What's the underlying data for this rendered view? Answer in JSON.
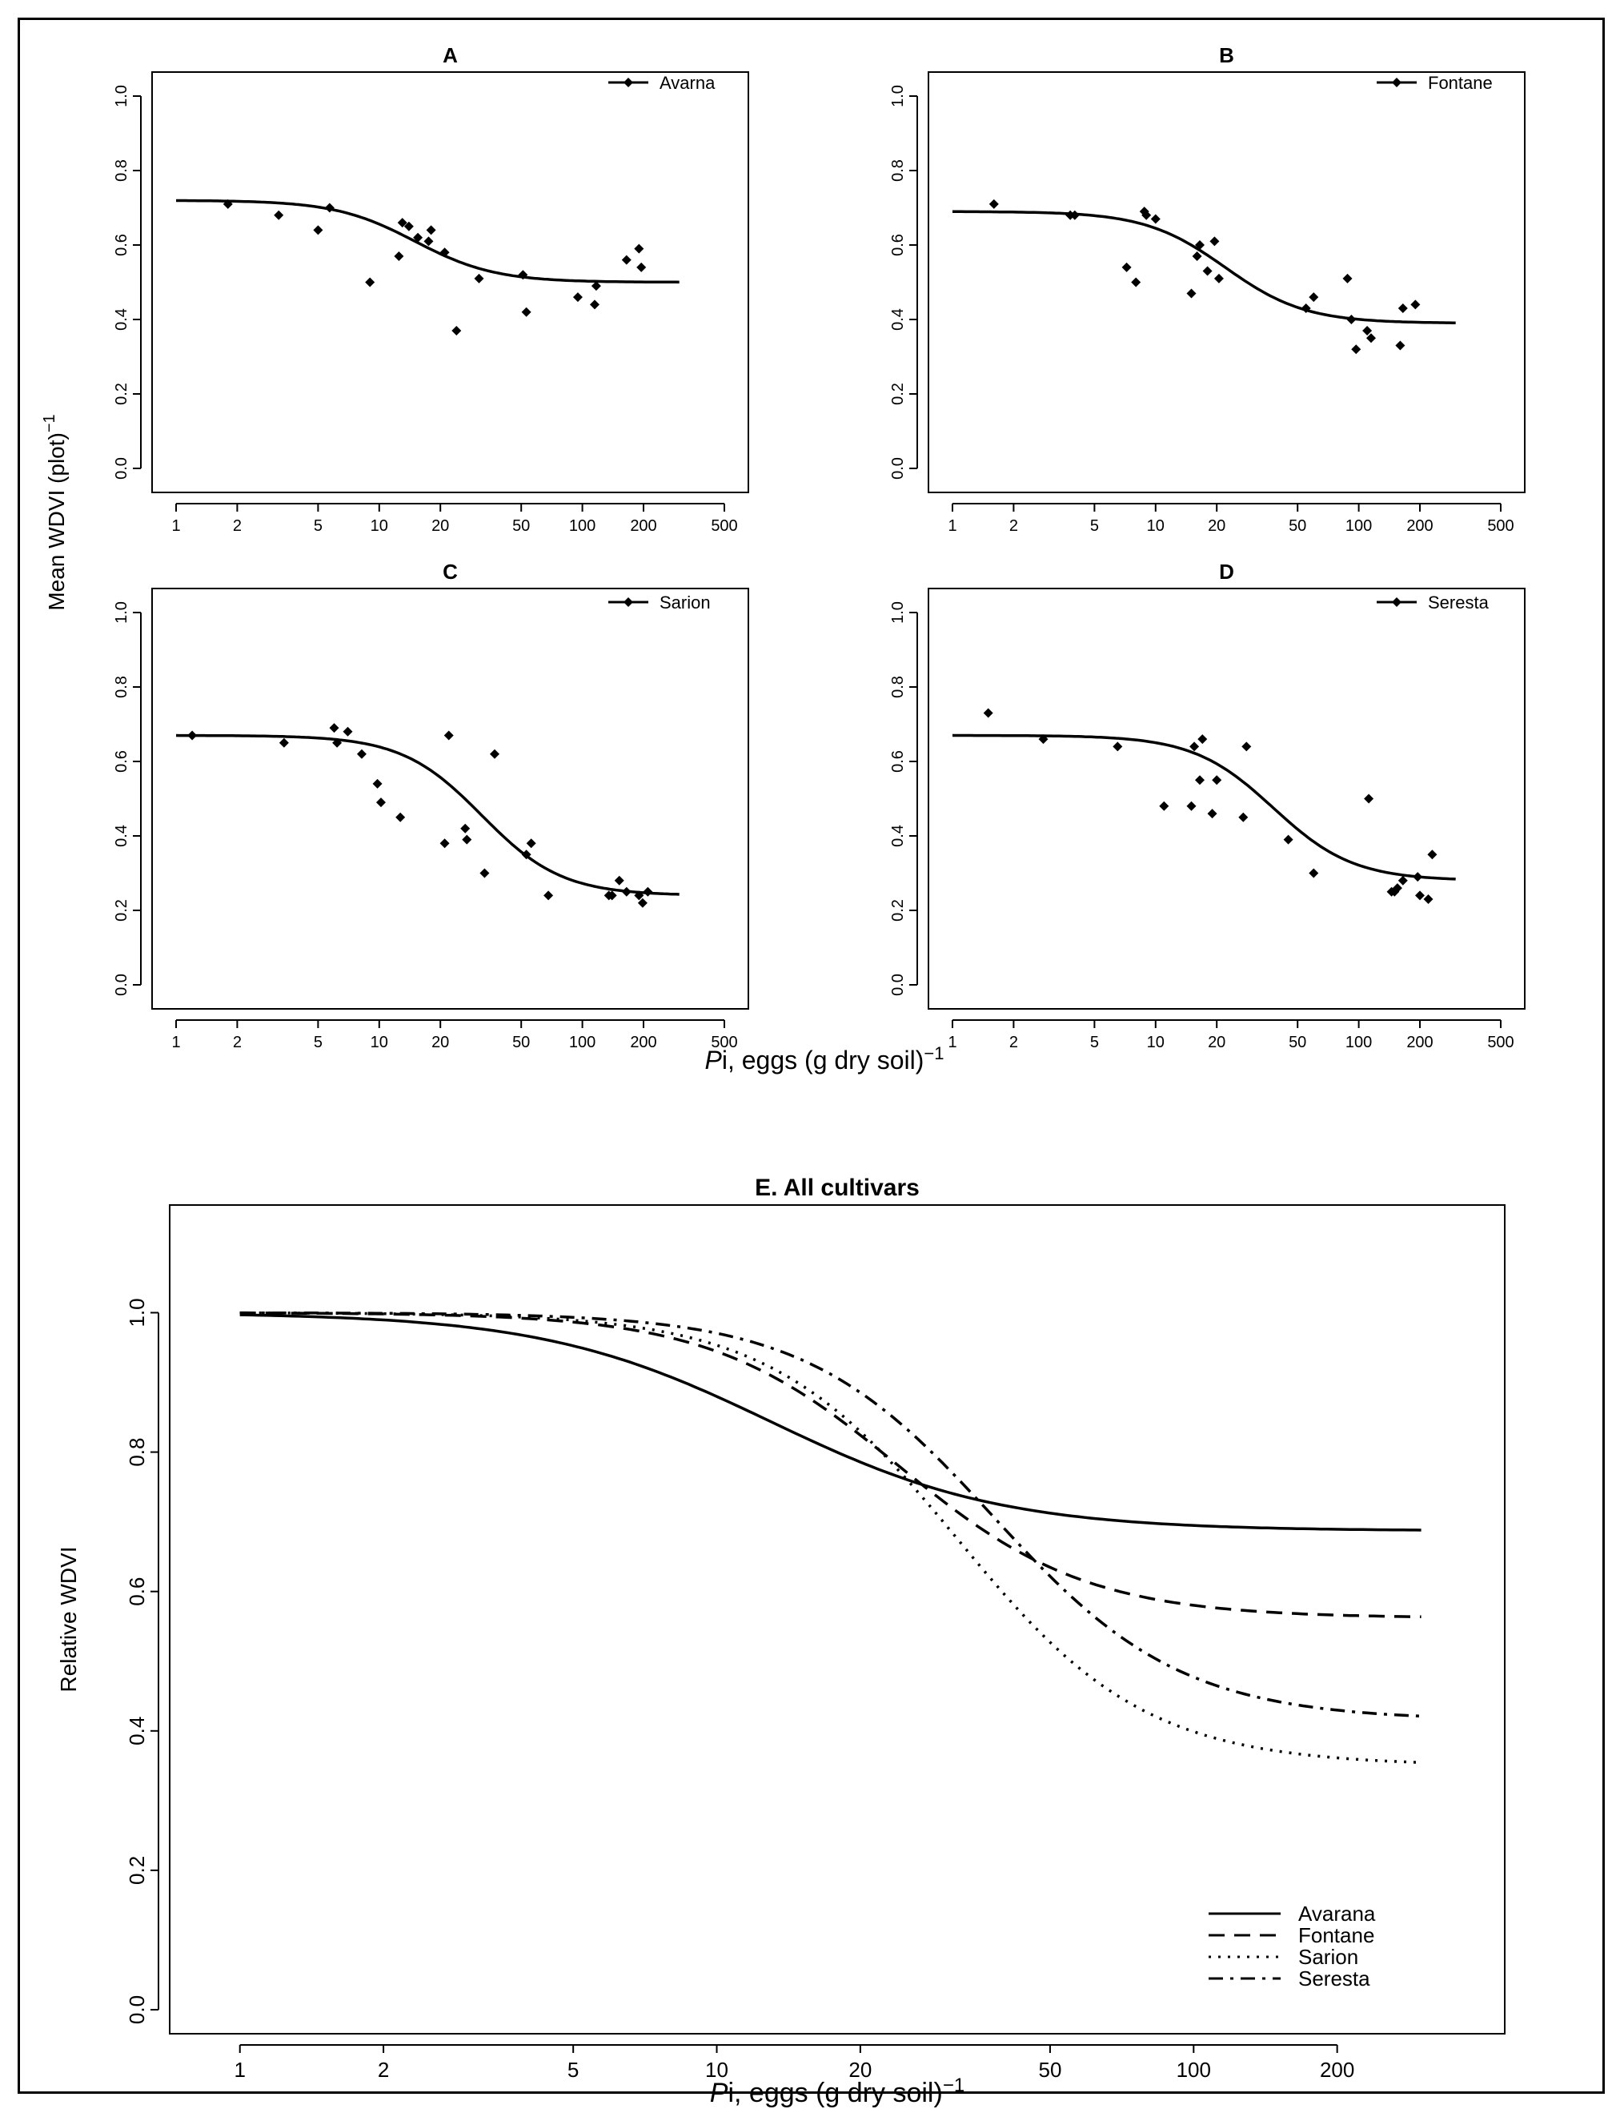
{
  "y_axis_label_top": "Mean WDVI (plot)",
  "y_axis_label_top_sup": "−1",
  "x_axis_label_top_italic": "P",
  "x_axis_label_top_rest": "i, eggs  (g dry soil)",
  "x_axis_label_top_sup": "−1",
  "chart_data": [
    {
      "id": "A",
      "type": "scatter",
      "title": "A",
      "xscale": "log",
      "xlim": [
        1,
        500
      ],
      "ylim": [
        0,
        1
      ],
      "xticks": [
        1,
        2,
        5,
        10,
        20,
        50,
        100,
        200,
        500
      ],
      "yticks": [
        0.0,
        0.2,
        0.4,
        0.6,
        0.8,
        1.0
      ],
      "ytick_labels": [
        "0.0",
        "0.2",
        "0.4",
        "0.6",
        "0.8",
        "1.0"
      ],
      "legend": "Avarna",
      "points": [
        [
          1.8,
          0.71
        ],
        [
          3.2,
          0.68
        ],
        [
          5,
          0.64
        ],
        [
          5.7,
          0.7
        ],
        [
          9,
          0.5
        ],
        [
          12.5,
          0.57
        ],
        [
          13,
          0.66
        ],
        [
          14,
          0.65
        ],
        [
          15.5,
          0.62
        ],
        [
          17.5,
          0.61
        ],
        [
          18,
          0.64
        ],
        [
          21,
          0.58
        ],
        [
          24,
          0.37
        ],
        [
          31,
          0.51
        ],
        [
          51,
          0.52
        ],
        [
          53,
          0.42
        ],
        [
          95,
          0.46
        ],
        [
          115,
          0.44
        ],
        [
          117,
          0.49
        ],
        [
          165,
          0.56
        ],
        [
          190,
          0.59
        ],
        [
          195,
          0.54
        ]
      ],
      "fit": {
        "upper": 0.72,
        "lower": 0.5,
        "mid": 15,
        "slope": 2.2,
        "x_range": [
          1,
          300
        ]
      }
    },
    {
      "id": "B",
      "type": "scatter",
      "title": "B",
      "xscale": "log",
      "xlim": [
        1,
        500
      ],
      "ylim": [
        0,
        1
      ],
      "xticks": [
        1,
        2,
        5,
        10,
        20,
        50,
        100,
        200,
        500
      ],
      "yticks": [
        0.0,
        0.2,
        0.4,
        0.6,
        0.8,
        1.0
      ],
      "ytick_labels": [
        "0.0",
        "0.2",
        "0.4",
        "0.6",
        "0.8",
        "1.0"
      ],
      "legend": "Fontane",
      "points": [
        [
          1.6,
          0.71
        ],
        [
          3.8,
          0.68
        ],
        [
          4,
          0.68
        ],
        [
          7.2,
          0.54
        ],
        [
          8,
          0.5
        ],
        [
          8.8,
          0.69
        ],
        [
          9,
          0.68
        ],
        [
          10,
          0.67
        ],
        [
          15,
          0.47
        ],
        [
          16,
          0.57
        ],
        [
          16.5,
          0.6
        ],
        [
          18,
          0.53
        ],
        [
          19.5,
          0.61
        ],
        [
          20.5,
          0.51
        ],
        [
          55,
          0.43
        ],
        [
          60,
          0.46
        ],
        [
          88,
          0.51
        ],
        [
          92,
          0.4
        ],
        [
          97,
          0.32
        ],
        [
          110,
          0.37
        ],
        [
          115,
          0.35
        ],
        [
          160,
          0.33
        ],
        [
          165,
          0.43
        ],
        [
          190,
          0.44
        ]
      ],
      "fit": {
        "upper": 0.69,
        "lower": 0.39,
        "mid": 22,
        "slope": 2.2,
        "x_range": [
          1,
          300
        ]
      }
    },
    {
      "id": "C",
      "type": "scatter",
      "title": "C",
      "xscale": "log",
      "xlim": [
        1,
        500
      ],
      "ylim": [
        0,
        1
      ],
      "xticks": [
        1,
        2,
        5,
        10,
        20,
        50,
        100,
        200,
        500
      ],
      "yticks": [
        0.0,
        0.2,
        0.4,
        0.6,
        0.8,
        1.0
      ],
      "ytick_labels": [
        "0.0",
        "0.2",
        "0.4",
        "0.6",
        "0.8",
        "1.0"
      ],
      "legend": "Sarion",
      "points": [
        [
          1.2,
          0.67
        ],
        [
          3.4,
          0.65
        ],
        [
          6,
          0.69
        ],
        [
          6.2,
          0.65
        ],
        [
          7,
          0.68
        ],
        [
          8.2,
          0.62
        ],
        [
          9.8,
          0.54
        ],
        [
          10.2,
          0.49
        ],
        [
          12.7,
          0.45
        ],
        [
          21,
          0.38
        ],
        [
          22,
          0.67
        ],
        [
          26.5,
          0.42
        ],
        [
          27,
          0.39
        ],
        [
          33,
          0.3
        ],
        [
          37,
          0.62
        ],
        [
          53,
          0.35
        ],
        [
          56,
          0.38
        ],
        [
          68,
          0.24
        ],
        [
          135,
          0.24
        ],
        [
          140,
          0.24
        ],
        [
          152,
          0.28
        ],
        [
          165,
          0.25
        ],
        [
          190,
          0.24
        ],
        [
          198,
          0.22
        ],
        [
          210,
          0.25
        ]
      ],
      "fit": {
        "upper": 0.67,
        "lower": 0.24,
        "mid": 32,
        "slope": 2.2,
        "x_range": [
          1,
          300
        ]
      }
    },
    {
      "id": "D",
      "type": "scatter",
      "title": "D",
      "xscale": "log",
      "xlim": [
        1,
        500
      ],
      "ylim": [
        0,
        1
      ],
      "xticks": [
        1,
        2,
        5,
        10,
        20,
        50,
        100,
        200,
        500
      ],
      "yticks": [
        0.0,
        0.2,
        0.4,
        0.6,
        0.8,
        1.0
      ],
      "ytick_labels": [
        "0.0",
        "0.2",
        "0.4",
        "0.6",
        "0.8",
        "1.0"
      ],
      "legend": "Seresta",
      "points": [
        [
          1.5,
          0.73
        ],
        [
          2.8,
          0.66
        ],
        [
          6.5,
          0.64
        ],
        [
          11,
          0.48
        ],
        [
          15,
          0.48
        ],
        [
          15.5,
          0.64
        ],
        [
          16.5,
          0.55
        ],
        [
          17,
          0.66
        ],
        [
          19,
          0.46
        ],
        [
          20,
          0.55
        ],
        [
          27,
          0.45
        ],
        [
          28,
          0.64
        ],
        [
          45,
          0.39
        ],
        [
          60,
          0.3
        ],
        [
          112,
          0.5
        ],
        [
          145,
          0.25
        ],
        [
          150,
          0.25
        ],
        [
          155,
          0.26
        ],
        [
          165,
          0.28
        ],
        [
          195,
          0.29
        ],
        [
          200,
          0.24
        ],
        [
          220,
          0.23
        ],
        [
          230,
          0.35
        ]
      ],
      "fit": {
        "upper": 0.67,
        "lower": 0.28,
        "mid": 38,
        "slope": 2.2,
        "x_range": [
          1,
          300
        ]
      }
    },
    {
      "id": "E",
      "type": "line",
      "title": "E. All cultivars",
      "xlabel_italic": "P",
      "xlabel_rest": "i, eggs  (g dry soil)",
      "xlabel_sup": "−1",
      "ylabel": "Relative WDVI",
      "xscale": "log",
      "xlim": [
        0.8,
        400
      ],
      "ylim": [
        0,
        1.12
      ],
      "xticks": [
        1,
        2,
        5,
        10,
        20,
        50,
        100,
        200
      ],
      "yticks": [
        0.0,
        0.2,
        0.4,
        0.6,
        0.8,
        1.0
      ],
      "ytick_labels": [
        "0.0",
        "0.2",
        "0.4",
        "0.6",
        "0.8",
        "1.0"
      ],
      "legend_position": "bottom-right",
      "series": [
        {
          "name": "Avarana",
          "dash": "solid",
          "upper": 1.0,
          "lower": 0.687,
          "mid": 13,
          "slope": 1.8
        },
        {
          "name": "Fontane",
          "dash": "dashed",
          "upper": 1.0,
          "lower": 0.562,
          "mid": 24,
          "slope": 2.2
        },
        {
          "name": "Sarion",
          "dash": "dotted",
          "upper": 1.0,
          "lower": 0.35,
          "mid": 32,
          "slope": 2.2
        },
        {
          "name": "Seresta",
          "dash": "dashdot",
          "upper": 1.0,
          "lower": 0.415,
          "mid": 38,
          "slope": 2.2
        }
      ],
      "x_range": [
        1,
        300
      ]
    }
  ]
}
